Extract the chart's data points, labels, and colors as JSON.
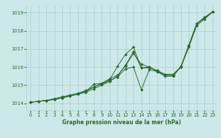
{
  "title": "Graphe pression niveau de la mer (hPa)",
  "bg_color": "#cce8e8",
  "grid_color": "#aacccc",
  "line_color": "#2d6a2d",
  "marker_color": "#2d6a2d",
  "xlim": [
    -0.5,
    23.5
  ],
  "ylim": [
    1013.6,
    1019.4
  ],
  "yticks": [
    1014,
    1015,
    1016,
    1017,
    1018,
    1019
  ],
  "xticks": [
    0,
    1,
    2,
    3,
    4,
    5,
    6,
    7,
    8,
    9,
    10,
    11,
    12,
    13,
    14,
    15,
    16,
    17,
    18,
    19,
    20,
    21,
    22,
    23
  ],
  "series": [
    [
      1014.05,
      1014.1,
      1014.15,
      1014.2,
      1014.3,
      1014.4,
      1014.5,
      1014.6,
      1014.8,
      1015.0,
      1015.2,
      1015.5,
      1016.1,
      1016.85,
      1015.95,
      1015.95,
      1015.8,
      1015.6,
      1015.6,
      1016.0,
      1017.1,
      1018.3,
      1018.65,
      1019.05
    ],
    [
      1014.05,
      1014.1,
      1014.15,
      1014.25,
      1014.35,
      1014.45,
      1014.55,
      1014.7,
      1014.9,
      1015.1,
      1015.35,
      1015.55,
      1016.05,
      1016.75,
      1016.15,
      1016.0,
      1015.8,
      1015.55,
      1015.55,
      1016.0,
      1017.2,
      1018.4,
      1018.7,
      1019.05
    ],
    [
      1014.05,
      1014.1,
      1014.15,
      1014.2,
      1014.3,
      1014.4,
      1014.5,
      1014.65,
      1015.05,
      1015.1,
      1015.3,
      1016.05,
      1016.7,
      1017.1,
      1015.95,
      1016.0,
      1015.75,
      1015.5,
      1015.5,
      1016.05,
      1017.2,
      1018.4,
      1018.75,
      1019.05
    ],
    [
      1014.05,
      1014.1,
      1014.15,
      1014.2,
      1014.3,
      1014.4,
      1014.5,
      1014.65,
      1014.9,
      1015.05,
      1015.25,
      1015.45,
      1015.9,
      1016.0,
      1014.75,
      1015.85,
      1015.75,
      1015.5,
      1015.5,
      1016.0,
      1017.2,
      1018.4,
      1018.75,
      1019.05
    ]
  ]
}
